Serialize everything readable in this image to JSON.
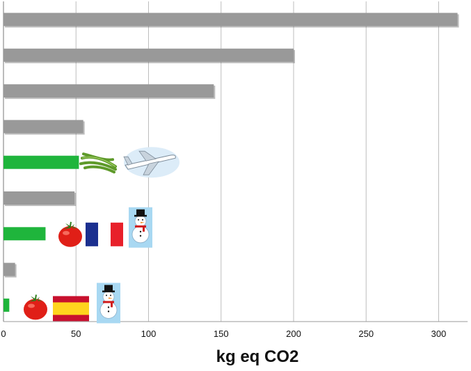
{
  "chart_data": {
    "type": "bar",
    "orientation": "horizontal",
    "xlabel": "kg eq CO2",
    "xlim": [
      0,
      320
    ],
    "xticks": [
      0,
      50,
      100,
      150,
      200,
      250,
      300
    ],
    "grid": true,
    "categories": [
      "",
      "",
      "",
      "",
      "",
      "",
      "",
      "",
      ""
    ],
    "values": [
      313,
      200,
      145,
      55,
      52,
      49,
      29,
      8,
      4
    ],
    "colors": [
      "#999999",
      "#999999",
      "#999999",
      "#999999",
      "#1fb53c",
      "#999999",
      "#1fb53c",
      "#999999",
      "#1fb53c"
    ],
    "annotations": [
      {
        "bar": 4,
        "icons": [
          "green-beans-icon",
          "airplane-icon"
        ]
      },
      {
        "bar": 6,
        "icons": [
          "tomato-icon",
          "france-flag-icon",
          "snowman-icon"
        ]
      },
      {
        "bar": 8,
        "icons": [
          "tomato-icon",
          "spain-flag-icon",
          "snowman-icon"
        ]
      }
    ]
  }
}
